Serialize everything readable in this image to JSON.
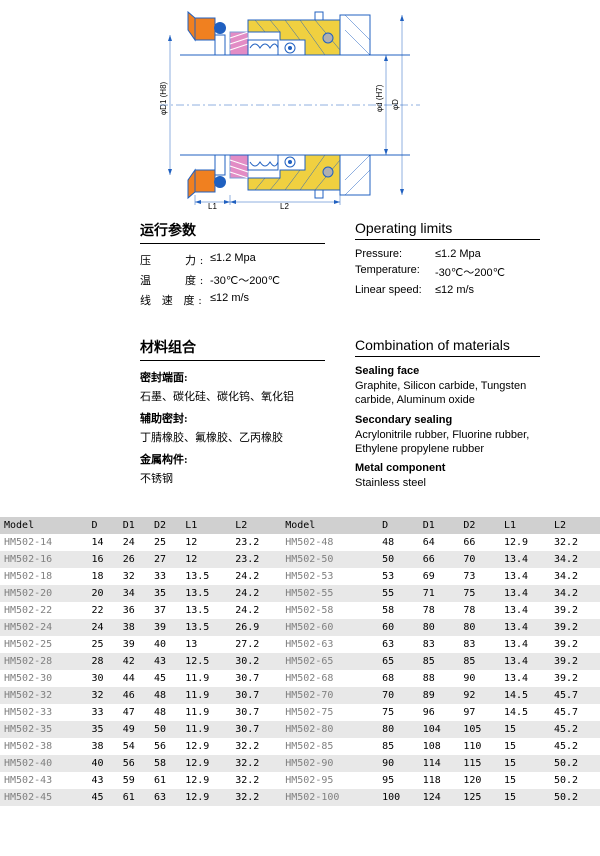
{
  "diagram": {
    "labels": {
      "d1": "φD1 (H8)",
      "d7": "φd (H7)",
      "d": "φD",
      "l1": "L1",
      "l2": "L2"
    },
    "colors": {
      "blue": "#2060c0",
      "orange": "#f08020",
      "yellow": "#f0d040",
      "magenta": "#d040a0",
      "gray": "#b0b0b0",
      "line": "#2060c0"
    }
  },
  "operating": {
    "title_cn": "运行参数",
    "title_en": "Operating limits",
    "rows": [
      {
        "label_cn": "压　　力:",
        "label_en": "Pressure:",
        "value": "≤1.2 Mpa"
      },
      {
        "label_cn": "温　　度:",
        "label_en": "Temperature:",
        "value": "-30℃～200℃"
      },
      {
        "label_cn": "线 速 度:",
        "label_en": "Linear speed:",
        "value": "≤12 m/s"
      }
    ]
  },
  "materials": {
    "title_cn": "材料组合",
    "title_en": "Combination of materials",
    "sections": [
      {
        "sub_cn": "密封端面:",
        "text_cn": "石墨、碳化硅、碳化钨、氧化铝",
        "sub_en": "Sealing face",
        "text_en": "Graphite, Silicon carbide, Tungsten carbide, Aluminum oxide"
      },
      {
        "sub_cn": "辅助密封:",
        "text_cn": "丁腈橡胶、氟橡胶、乙丙橡胶",
        "sub_en": "Secondary sealing",
        "text_en": "Acrylonitrile rubber, Fluorine rubber, Ethylene propylene rubber"
      },
      {
        "sub_cn": "金属构件:",
        "text_cn": "不锈钢",
        "sub_en": "Metal component",
        "text_en": "Stainless steel"
      }
    ]
  },
  "table": {
    "headers": [
      "Model",
      "D",
      "D1",
      "D2",
      "L1",
      "L2",
      "Model",
      "D",
      "D1",
      "D2",
      "L1",
      "L2"
    ],
    "rows": [
      [
        "HM502-14",
        "14",
        "24",
        "25",
        "12",
        "23.2",
        "HM502-48",
        "48",
        "64",
        "66",
        "12.9",
        "32.2"
      ],
      [
        "HM502-16",
        "16",
        "26",
        "27",
        "12",
        "23.2",
        "HM502-50",
        "50",
        "66",
        "70",
        "13.4",
        "34.2"
      ],
      [
        "HM502-18",
        "18",
        "32",
        "33",
        "13.5",
        "24.2",
        "HM502-53",
        "53",
        "69",
        "73",
        "13.4",
        "34.2"
      ],
      [
        "HM502-20",
        "20",
        "34",
        "35",
        "13.5",
        "24.2",
        "HM502-55",
        "55",
        "71",
        "75",
        "13.4",
        "34.2"
      ],
      [
        "HM502-22",
        "22",
        "36",
        "37",
        "13.5",
        "24.2",
        "HM502-58",
        "58",
        "78",
        "78",
        "13.4",
        "39.2"
      ],
      [
        "HM502-24",
        "24",
        "38",
        "39",
        "13.5",
        "26.9",
        "HM502-60",
        "60",
        "80",
        "80",
        "13.4",
        "39.2"
      ],
      [
        "HM502-25",
        "25",
        "39",
        "40",
        "13",
        "27.2",
        "HM502-63",
        "63",
        "83",
        "83",
        "13.4",
        "39.2"
      ],
      [
        "HM502-28",
        "28",
        "42",
        "43",
        "12.5",
        "30.2",
        "HM502-65",
        "65",
        "85",
        "85",
        "13.4",
        "39.2"
      ],
      [
        "HM502-30",
        "30",
        "44",
        "45",
        "11.9",
        "30.7",
        "HM502-68",
        "68",
        "88",
        "90",
        "13.4",
        "39.2"
      ],
      [
        "HM502-32",
        "32",
        "46",
        "48",
        "11.9",
        "30.7",
        "HM502-70",
        "70",
        "89",
        "92",
        "14.5",
        "45.7"
      ],
      [
        "HM502-33",
        "33",
        "47",
        "48",
        "11.9",
        "30.7",
        "HM502-75",
        "75",
        "96",
        "97",
        "14.5",
        "45.7"
      ],
      [
        "HM502-35",
        "35",
        "49",
        "50",
        "11.9",
        "30.7",
        "HM502-80",
        "80",
        "104",
        "105",
        "15",
        "45.2"
      ],
      [
        "HM502-38",
        "38",
        "54",
        "56",
        "12.9",
        "32.2",
        "HM502-85",
        "85",
        "108",
        "110",
        "15",
        "45.2"
      ],
      [
        "HM502-40",
        "40",
        "56",
        "58",
        "12.9",
        "32.2",
        "HM502-90",
        "90",
        "114",
        "115",
        "15",
        "50.2"
      ],
      [
        "HM502-43",
        "43",
        "59",
        "61",
        "12.9",
        "32.2",
        "HM502-95",
        "95",
        "118",
        "120",
        "15",
        "50.2"
      ],
      [
        "HM502-45",
        "45",
        "61",
        "63",
        "12.9",
        "32.2",
        "HM502-100",
        "100",
        "124",
        "125",
        "15",
        "50.2"
      ]
    ]
  }
}
